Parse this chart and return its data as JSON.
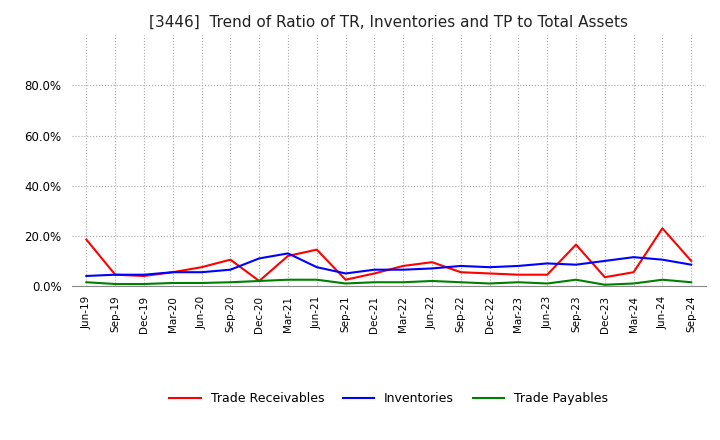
{
  "title": "[3446]  Trend of Ratio of TR, Inventories and TP to Total Assets",
  "x_labels": [
    "Jun-19",
    "Sep-19",
    "Dec-19",
    "Mar-20",
    "Jun-20",
    "Sep-20",
    "Dec-20",
    "Mar-21",
    "Jun-21",
    "Sep-21",
    "Dec-21",
    "Mar-22",
    "Jun-22",
    "Sep-22",
    "Dec-22",
    "Mar-23",
    "Jun-23",
    "Sep-23",
    "Dec-23",
    "Mar-24",
    "Jun-24",
    "Sep-24"
  ],
  "trade_receivables": [
    18.5,
    4.5,
    4.0,
    5.5,
    7.5,
    10.5,
    2.0,
    12.0,
    14.5,
    2.5,
    5.0,
    8.0,
    9.5,
    5.5,
    5.0,
    4.5,
    4.5,
    16.5,
    3.5,
    5.5,
    23.0,
    10.0
  ],
  "inventories": [
    4.0,
    4.5,
    4.5,
    5.5,
    5.5,
    6.5,
    11.0,
    13.0,
    7.5,
    5.0,
    6.5,
    6.5,
    7.0,
    8.0,
    7.5,
    8.0,
    9.0,
    8.5,
    10.0,
    11.5,
    10.5,
    8.5
  ],
  "trade_payables": [
    1.5,
    0.8,
    0.8,
    1.2,
    1.2,
    1.5,
    2.0,
    2.5,
    2.5,
    1.0,
    1.5,
    1.5,
    2.0,
    1.5,
    1.0,
    1.5,
    1.0,
    2.5,
    0.5,
    1.0,
    2.5,
    1.5
  ],
  "tr_color": "#ff0000",
  "inv_color": "#0000ff",
  "tp_color": "#008000",
  "ylim": [
    0,
    100
  ],
  "yticks": [
    0,
    20,
    40,
    60,
    80
  ],
  "background_color": "#ffffff",
  "grid_color": "#aaaaaa",
  "title_fontsize": 11
}
